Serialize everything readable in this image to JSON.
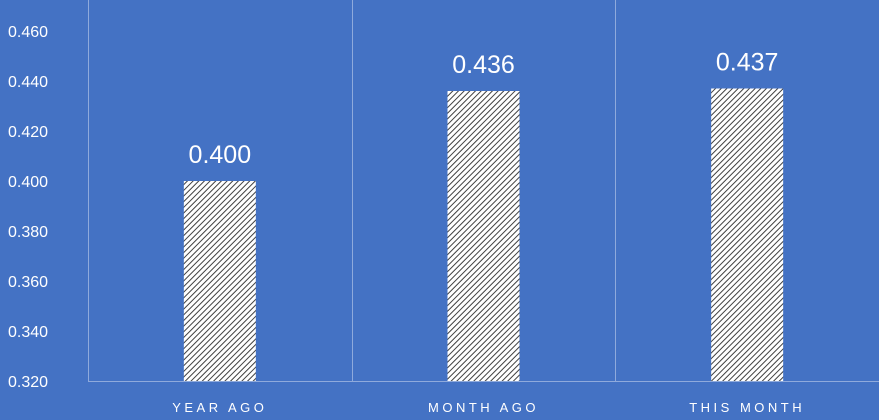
{
  "chart_data": {
    "type": "bar",
    "categories": [
      "YEAR AGO",
      "MONTH AGO",
      "THIS MONTH"
    ],
    "values": [
      0.4,
      0.436,
      0.437
    ],
    "value_labels": [
      "0.400",
      "0.436",
      "0.437"
    ],
    "y_ticks": [
      "0.320",
      "0.340",
      "0.360",
      "0.380",
      "0.400",
      "0.420",
      "0.440",
      "0.460"
    ],
    "ylim": [
      0.32,
      0.47
    ],
    "title": "",
    "xlabel": "",
    "ylabel": "",
    "grid": "vertical category separators",
    "legend": "none",
    "colors": {
      "background": "#4472C4",
      "bar_fill": "#FFFFFF",
      "bar_hatch": "#404040",
      "gridline": "#8FAADC",
      "text": "#FFFFFF"
    }
  }
}
